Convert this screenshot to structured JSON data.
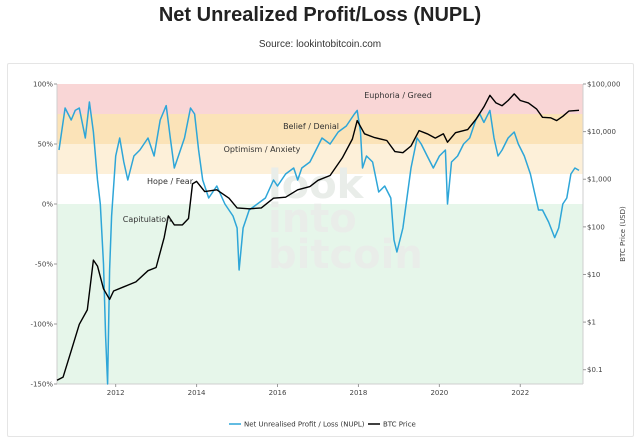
{
  "header": {
    "title": "Net Unrealized Profit/Loss (NUPL)",
    "subtitle": "Source: lookintobitcoin.com"
  },
  "watermark": [
    "look",
    "into",
    "bitcoin"
  ],
  "colors": {
    "nupl": "#2ea6d8",
    "btc": "#000000",
    "euphoria": "#f9d6d6",
    "belief": "#fbe3b8",
    "optimism": "#fdf0d9",
    "hope": "#ffffff",
    "capitulation": "#e6f6ea"
  },
  "chart_data": {
    "type": "line",
    "title": "",
    "xlabel": "",
    "ylabel_right": "BTC Price (USD)",
    "x_ticks": [
      "2012",
      "2014",
      "2016",
      "2018",
      "2020",
      "2022"
    ],
    "y_left_ticks": [
      "100%",
      "50%",
      "0%",
      "-50%",
      "-100%",
      "-150%"
    ],
    "y_right_ticks": [
      "$100,000",
      "$10,000",
      "$1,000",
      "$100",
      "$10",
      "$1",
      "$0.1"
    ],
    "ylim_left": [
      -1.5,
      1.0
    ],
    "ylim_right_log10": [
      -1.3,
      5.0
    ],
    "grid": false,
    "legend_position": "bottom",
    "zones": [
      {
        "name": "Euphoria / Greed",
        "from": 0.75,
        "to": 1.0
      },
      {
        "name": "Belief / Denial",
        "from": 0.5,
        "to": 0.75
      },
      {
        "name": "Optimism / Anxiety",
        "from": 0.25,
        "to": 0.5
      },
      {
        "name": "Hope / Fear",
        "from": 0.0,
        "to": 0.25
      },
      {
        "name": "Capitulation",
        "from": -1.5,
        "to": 0.0
      }
    ],
    "series": [
      {
        "name": "Net Unrealised Profit / Loss (NUPL)",
        "axis": "left",
        "x": [
          2010.6,
          2010.75,
          2010.9,
          2011.0,
          2011.1,
          2011.25,
          2011.35,
          2011.45,
          2011.55,
          2011.62,
          2011.7,
          2011.75,
          2011.8,
          2011.85,
          2011.9,
          2012.0,
          2012.1,
          2012.2,
          2012.3,
          2012.45,
          2012.6,
          2012.8,
          2012.95,
          2013.1,
          2013.25,
          2013.35,
          2013.45,
          2013.55,
          2013.7,
          2013.85,
          2013.95,
          2014.05,
          2014.15,
          2014.3,
          2014.5,
          2014.7,
          2014.9,
          2015.0,
          2015.05,
          2015.15,
          2015.3,
          2015.5,
          2015.7,
          2015.9,
          2016.0,
          2016.2,
          2016.4,
          2016.5,
          2016.6,
          2016.8,
          2016.95,
          2017.1,
          2017.3,
          2017.5,
          2017.7,
          2017.9,
          2017.97,
          2018.05,
          2018.1,
          2018.2,
          2018.35,
          2018.5,
          2018.65,
          2018.8,
          2018.88,
          2018.95,
          2019.1,
          2019.3,
          2019.45,
          2019.55,
          2019.7,
          2019.85,
          2020.0,
          2020.15,
          2020.2,
          2020.3,
          2020.45,
          2020.6,
          2020.75,
          2020.9,
          2021.0,
          2021.1,
          2021.25,
          2021.35,
          2021.45,
          2021.55,
          2021.7,
          2021.85,
          2021.95,
          2022.1,
          2022.25,
          2022.35,
          2022.45,
          2022.55,
          2022.7,
          2022.85,
          2022.95,
          2023.05,
          2023.15,
          2023.25,
          2023.35,
          2023.45
        ],
        "values": [
          0.45,
          0.8,
          0.7,
          0.78,
          0.8,
          0.55,
          0.85,
          0.6,
          0.2,
          0.0,
          -0.5,
          -1.1,
          -1.5,
          -0.55,
          -0.1,
          0.4,
          0.55,
          0.35,
          0.2,
          0.4,
          0.45,
          0.55,
          0.4,
          0.7,
          0.82,
          0.55,
          0.3,
          0.4,
          0.55,
          0.8,
          0.75,
          0.45,
          0.2,
          0.05,
          0.15,
          0.0,
          -0.1,
          -0.2,
          -0.55,
          -0.2,
          -0.05,
          0.0,
          0.05,
          0.2,
          0.15,
          0.25,
          0.3,
          0.2,
          0.3,
          0.35,
          0.45,
          0.55,
          0.5,
          0.6,
          0.65,
          0.75,
          0.78,
          0.6,
          0.3,
          0.4,
          0.35,
          0.1,
          0.15,
          0.05,
          -0.3,
          -0.4,
          -0.2,
          0.3,
          0.55,
          0.5,
          0.4,
          0.3,
          0.4,
          0.45,
          0.0,
          0.35,
          0.4,
          0.5,
          0.55,
          0.7,
          0.75,
          0.68,
          0.78,
          0.55,
          0.4,
          0.45,
          0.55,
          0.6,
          0.5,
          0.4,
          0.25,
          0.1,
          -0.05,
          -0.05,
          -0.15,
          -0.28,
          -0.2,
          0.0,
          0.05,
          0.25,
          0.3,
          0.28
        ]
      },
      {
        "name": "BTC Price",
        "axis": "right",
        "x": [
          2010.55,
          2010.7,
          2010.9,
          2011.1,
          2011.3,
          2011.45,
          2011.55,
          2011.7,
          2011.85,
          2011.95,
          2012.2,
          2012.5,
          2012.8,
          2013.0,
          2013.2,
          2013.3,
          2013.45,
          2013.65,
          2013.8,
          2013.9,
          2014.0,
          2014.2,
          2014.5,
          2014.8,
          2015.0,
          2015.3,
          2015.6,
          2015.9,
          2016.2,
          2016.5,
          2016.8,
          2017.0,
          2017.3,
          2017.6,
          2017.85,
          2017.97,
          2018.15,
          2018.4,
          2018.7,
          2018.9,
          2019.1,
          2019.3,
          2019.5,
          2019.7,
          2019.9,
          2020.1,
          2020.2,
          2020.4,
          2020.7,
          2020.9,
          2021.1,
          2021.25,
          2021.4,
          2021.55,
          2021.7,
          2021.85,
          2022.0,
          2022.2,
          2022.4,
          2022.55,
          2022.75,
          2022.9,
          2023.05,
          2023.2,
          2023.45
        ],
        "values": [
          0.06,
          0.07,
          0.25,
          0.9,
          1.8,
          20,
          15,
          5,
          3,
          4.5,
          5.5,
          7,
          12,
          14,
          60,
          170,
          110,
          110,
          150,
          800,
          900,
          550,
          600,
          400,
          250,
          240,
          250,
          400,
          420,
          600,
          700,
          950,
          1200,
          2800,
          7000,
          17000,
          9000,
          7500,
          6500,
          3800,
          3600,
          5000,
          10500,
          9000,
          7300,
          9000,
          6000,
          9500,
          11000,
          18000,
          33000,
          58000,
          40000,
          35000,
          45000,
          62000,
          45000,
          40000,
          30000,
          20000,
          19500,
          17000,
          21000,
          27000,
          28000
        ]
      }
    ]
  },
  "legend": {
    "nupl_label": "Net Unrealised Profit / Loss (NUPL)",
    "btc_label": "BTC Price"
  }
}
